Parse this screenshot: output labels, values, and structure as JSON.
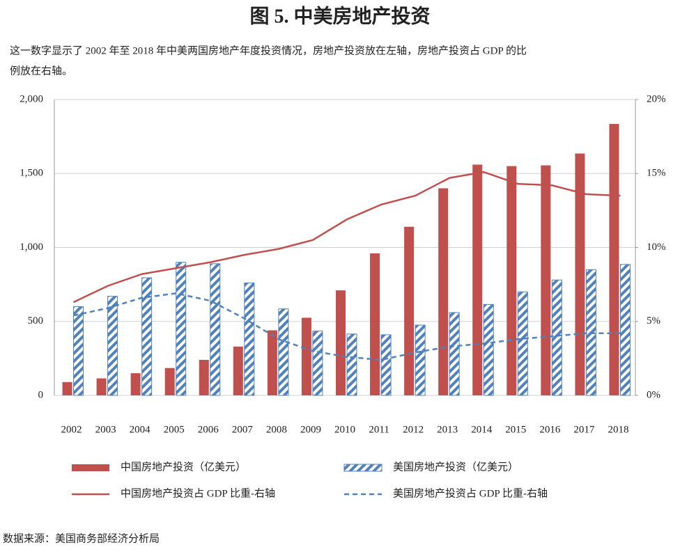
{
  "chart_data": {
    "type": "combo",
    "title": "图 5. 中美房地产投资",
    "subtitle_lines": [
      "这一数字显示了 2002 年至 2018 年中美两国房地产年度投资情况，房地产投资放在左轴，房地产投资占 GDP 的比",
      "例放在右轴。"
    ],
    "source": "数据来源：美国商务部经济分析局",
    "categories": [
      "2002",
      "2003",
      "2004",
      "2005",
      "2006",
      "2007",
      "2008",
      "2009",
      "2010",
      "2011",
      "2012",
      "2013",
      "2014",
      "2015",
      "2016",
      "2017",
      "2018"
    ],
    "ylim": [
      0,
      2000
    ],
    "yticks": [
      0,
      500,
      {
        "value": 1000,
        "label": "1,000"
      },
      {
        "value": 1500,
        "label": "1,500"
      },
      {
        "value": 2000,
        "label": "2,000"
      }
    ],
    "y2lim": [
      0,
      20
    ],
    "y2ticks": [
      {
        "value": 0,
        "label": "0%"
      },
      {
        "value": 5,
        "label": "5%"
      },
      {
        "value": 10,
        "label": "10%"
      },
      {
        "value": 15,
        "label": "15%"
      },
      {
        "value": 20,
        "label": "20%"
      }
    ],
    "grid": true,
    "series": [
      {
        "name": "中国房地产投资（亿美元）",
        "type": "bar",
        "color": "#c0504d",
        "values": [
          90,
          115,
          150,
          185,
          240,
          330,
          440,
          525,
          710,
          960,
          1140,
          1400,
          1560,
          1550,
          1555,
          1635,
          1835
        ]
      },
      {
        "name": "美国房地产投资（亿美元）",
        "type": "bar",
        "hatch": true,
        "color": "#4f81bd",
        "values": [
          600,
          670,
          795,
          900,
          890,
          760,
          585,
          435,
          415,
          410,
          475,
          560,
          615,
          700,
          780,
          850,
          885
        ]
      },
      {
        "name": "中国房地产投资占 GDP 比重-右轴",
        "type": "line",
        "axis": "y2",
        "color": "#c0504d",
        "values": [
          6.3,
          7.4,
          8.2,
          8.6,
          9.0,
          9.5,
          9.9,
          10.5,
          11.9,
          12.9,
          13.5,
          14.7,
          15.1,
          14.3,
          14.2,
          13.6,
          13.5
        ]
      },
      {
        "name": "美国房地产投资占 GDP 比重-右轴",
        "type": "line",
        "axis": "y2",
        "dashed": true,
        "color": "#4f81bd",
        "values": [
          5.4,
          5.9,
          6.6,
          6.9,
          6.4,
          5.2,
          3.8,
          3.0,
          2.6,
          2.4,
          2.9,
          3.3,
          3.5,
          3.8,
          4.0,
          4.2,
          4.2
        ]
      }
    ]
  }
}
